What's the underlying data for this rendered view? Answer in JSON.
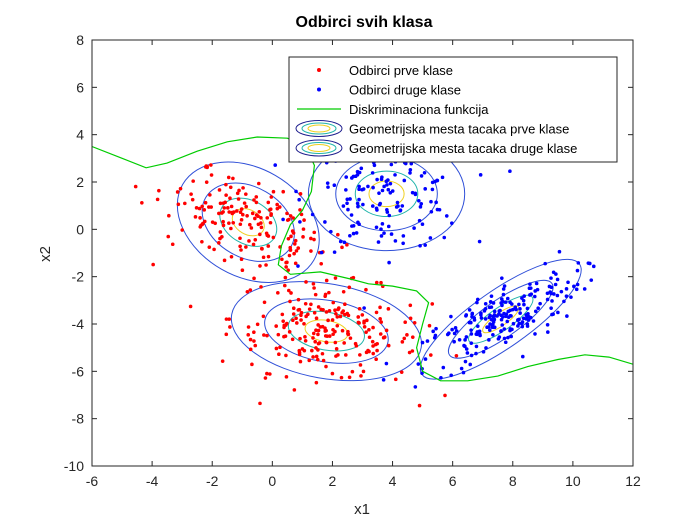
{
  "chart_data": {
    "type": "scatter",
    "title": "Odbirci svih klasa",
    "xlabel": "x1",
    "ylabel": "x2",
    "xlim": [
      -6,
      12
    ],
    "ylim": [
      -10,
      8
    ],
    "xticks": [
      -6,
      -4,
      -2,
      0,
      2,
      4,
      6,
      8,
      10,
      12
    ],
    "yticks": [
      -10,
      -8,
      -6,
      -4,
      -2,
      0,
      2,
      4,
      6,
      8
    ],
    "grid": false,
    "legend_position": "top-right",
    "colors": {
      "class1": "#ff0000",
      "class2": "#0000ff",
      "discriminant": "#00cc00",
      "contour_outer": "#3050d8",
      "contour_mid": "#20b4aa",
      "contour_inner": "#f0d020"
    },
    "legend": [
      {
        "label": "Odbirci prve klase",
        "marker": "red-dot"
      },
      {
        "label": "Odbirci druge klase",
        "marker": "blue-dot"
      },
      {
        "label": "Diskriminaciona funkcija",
        "marker": "green-line"
      },
      {
        "label": "Geometrijska mesta tacaka prve klase",
        "marker": "contour-ellipse"
      },
      {
        "label": "Geometrijska mesta tacaka druge klase",
        "marker": "contour-ellipse"
      }
    ],
    "clusters": {
      "class1": [
        {
          "center": [
            -0.8,
            0.3
          ],
          "spread": [
            0.9,
            1.6
          ],
          "rotation_deg": 60,
          "n": 180
        },
        {
          "center": [
            1.8,
            -4.3
          ],
          "spread": [
            1.6,
            1.0
          ],
          "rotation_deg": -10,
          "n": 220
        }
      ],
      "class2": [
        {
          "center": [
            3.8,
            1.5
          ],
          "spread": [
            1.3,
            1.2
          ],
          "rotation_deg": 0,
          "n": 160
        },
        {
          "center": [
            7.6,
            -3.8
          ],
          "spread": [
            1.6,
            0.6
          ],
          "rotation_deg": 35,
          "n": 220
        }
      ]
    },
    "discriminant": [
      [
        -6,
        3.5
      ],
      [
        -5,
        3.0
      ],
      [
        -4.2,
        2.6
      ],
      [
        -3.5,
        2.8
      ],
      [
        -2.5,
        3.3
      ],
      [
        -1.5,
        3.7
      ],
      [
        -0.5,
        3.9
      ],
      [
        0.5,
        3.85
      ],
      [
        1.1,
        3.5
      ],
      [
        1.4,
        2.7
      ],
      [
        1.3,
        1.6
      ],
      [
        1.0,
        0.8
      ],
      [
        0.6,
        0.2
      ],
      [
        0.3,
        -0.7
      ],
      [
        0.2,
        -1.5
      ],
      [
        0.6,
        -1.9
      ],
      [
        1.6,
        -1.8
      ],
      [
        2.6,
        -2.1
      ],
      [
        3.2,
        -2.3
      ],
      [
        4.0,
        -2.4
      ],
      [
        4.8,
        -2.6
      ],
      [
        5.2,
        -3.1
      ],
      [
        5.0,
        -4.0
      ],
      [
        4.8,
        -5.0
      ],
      [
        5.0,
        -6.0
      ],
      [
        5.6,
        -6.4
      ],
      [
        6.5,
        -6.4
      ],
      [
        7.5,
        -6.2
      ],
      [
        8.5,
        -5.8
      ],
      [
        9.5,
        -5.5
      ],
      [
        10.4,
        -5.3
      ],
      [
        11.2,
        -5.4
      ],
      [
        12.0,
        -5.7
      ]
    ]
  }
}
